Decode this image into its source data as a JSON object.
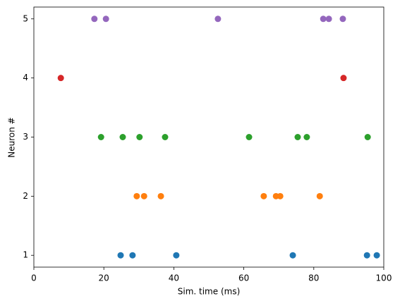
{
  "chart_data": {
    "type": "scatter",
    "xlabel": "Sim. time (ms)",
    "ylabel": "Neuron #",
    "xlim": [
      0,
      100
    ],
    "xticks": [
      0,
      20,
      40,
      60,
      80,
      100
    ],
    "ylim": [
      0.8,
      5.2
    ],
    "yticks": [
      1,
      2,
      3,
      4,
      5
    ],
    "series": [
      {
        "color": "#1f77b4",
        "x": [
          24.8,
          28.2,
          40.7,
          74.0,
          95.2,
          98.0
        ],
        "values": [
          1,
          1,
          1,
          1,
          1,
          1
        ]
      },
      {
        "color": "#ff7f0e",
        "x": [
          29.4,
          31.5,
          36.3,
          65.7,
          69.2,
          70.4,
          81.7
        ],
        "values": [
          2,
          2,
          2,
          2,
          2,
          2,
          2
        ]
      },
      {
        "color": "#2ca02c",
        "x": [
          19.2,
          25.4,
          30.2,
          37.5,
          61.5,
          75.4,
          78.0,
          95.4
        ],
        "values": [
          3,
          3,
          3,
          3,
          3,
          3,
          3,
          3
        ]
      },
      {
        "color": "#d62728",
        "x": [
          7.7,
          88.5
        ],
        "values": [
          4,
          4
        ]
      },
      {
        "color": "#9467bd",
        "x": [
          17.3,
          20.6,
          52.6,
          82.7,
          84.3,
          88.3
        ],
        "values": [
          5,
          5,
          5,
          5,
          5,
          5
        ]
      }
    ]
  }
}
